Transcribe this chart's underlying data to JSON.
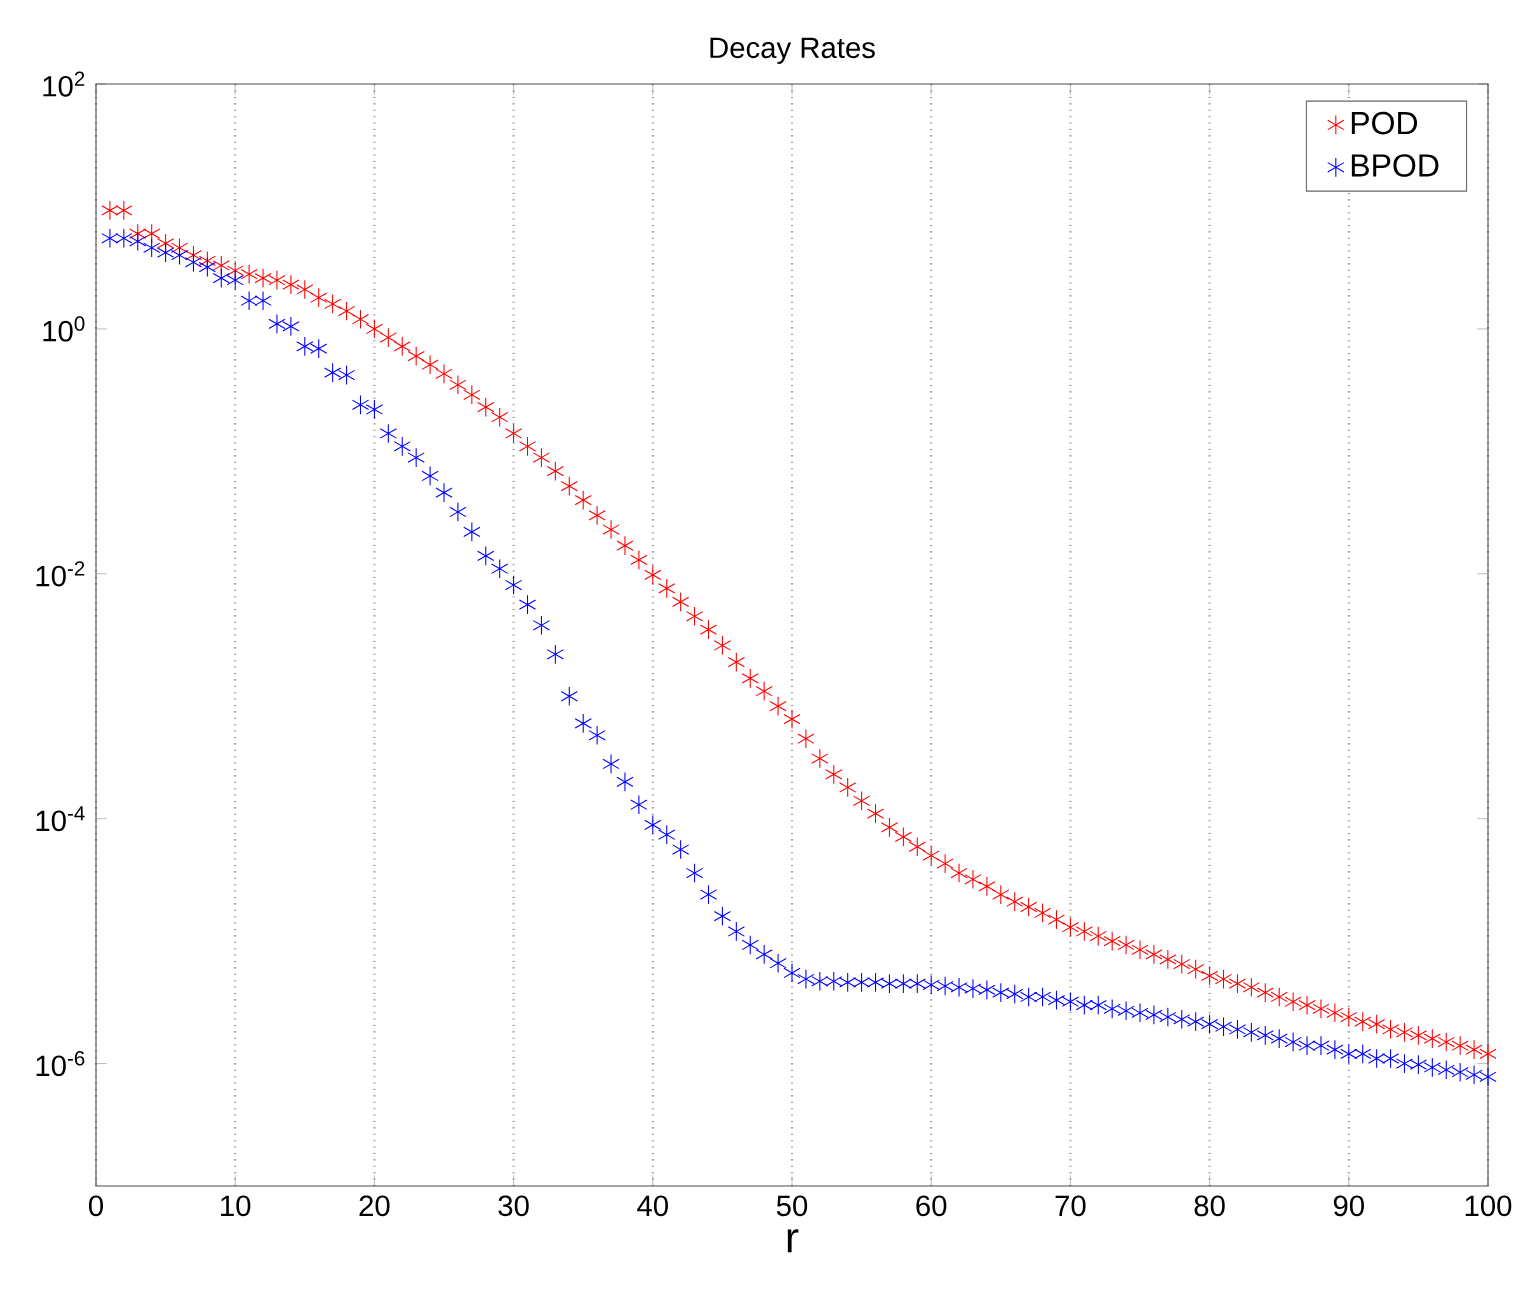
{
  "chart_data": {
    "type": "scatter",
    "title": "Decay Rates",
    "xlabel": "r",
    "x": [
      1,
      2,
      3,
      4,
      5,
      6,
      7,
      8,
      9,
      10,
      11,
      12,
      13,
      14,
      15,
      16,
      17,
      18,
      19,
      20,
      21,
      22,
      23,
      24,
      25,
      26,
      27,
      28,
      29,
      30,
      31,
      32,
      33,
      34,
      35,
      36,
      37,
      38,
      39,
      40,
      41,
      42,
      43,
      44,
      45,
      46,
      47,
      48,
      49,
      50,
      51,
      52,
      53,
      54,
      55,
      56,
      57,
      58,
      59,
      60,
      61,
      62,
      63,
      64,
      65,
      66,
      67,
      68,
      69,
      70,
      71,
      72,
      73,
      74,
      75,
      76,
      77,
      78,
      79,
      80,
      81,
      82,
      83,
      84,
      85,
      86,
      87,
      88,
      89,
      90,
      91,
      92,
      93,
      94,
      95,
      96,
      97,
      98,
      99,
      100
    ],
    "series": [
      {
        "name": "POD",
        "color": "#ff0000",
        "values": [
          9.3,
          9.3,
          6.0,
          6.0,
          5.0,
          4.6,
          4.0,
          3.6,
          3.3,
          3.0,
          2.8,
          2.6,
          2.5,
          2.3,
          2.1,
          1.8,
          1.6,
          1.4,
          1.2,
          1.0,
          0.85,
          0.72,
          0.6,
          0.51,
          0.43,
          0.35,
          0.29,
          0.23,
          0.19,
          0.14,
          0.11,
          0.089,
          0.069,
          0.052,
          0.04,
          0.03,
          0.023,
          0.017,
          0.013,
          0.0098,
          0.0076,
          0.0059,
          0.0045,
          0.0035,
          0.0026,
          0.0019,
          0.0014,
          0.0011,
          0.00083,
          0.00065,
          0.00045,
          0.00031,
          0.00023,
          0.00018,
          0.00014,
          0.00011,
          8.5e-05,
          7.1e-05,
          5.9e-05,
          5e-05,
          4.3e-05,
          3.6e-05,
          3.2e-05,
          2.8e-05,
          2.4e-05,
          2.1e-05,
          1.9e-05,
          1.7e-05,
          1.5e-05,
          1.3e-05,
          1.2e-05,
          1.1e-05,
          1e-05,
          9.3e-06,
          8.5e-06,
          7.8e-06,
          7.1e-06,
          6.5e-06,
          5.9e-06,
          5.2e-06,
          4.9e-06,
          4.5e-06,
          4.2e-06,
          3.8e-06,
          3.5e-06,
          3.2e-06,
          3e-06,
          2.8e-06,
          2.6e-06,
          2.4e-06,
          2.2e-06,
          2.1e-06,
          1.9e-06,
          1.8e-06,
          1.7e-06,
          1.6e-06,
          1.5e-06,
          1.4e-06,
          1.3e-06,
          1.2e-06
        ]
      },
      {
        "name": "BPOD",
        "color": "#0000ff",
        "values": [
          5.5,
          5.5,
          5.2,
          4.6,
          4.2,
          4.0,
          3.5,
          3.2,
          2.6,
          2.5,
          1.7,
          1.7,
          1.1,
          1.05,
          0.72,
          0.69,
          0.44,
          0.42,
          0.24,
          0.22,
          0.14,
          0.11,
          0.089,
          0.063,
          0.046,
          0.032,
          0.022,
          0.014,
          0.011,
          0.0081,
          0.0056,
          0.0038,
          0.0022,
          0.001,
          0.0006,
          0.00048,
          0.00028,
          0.0002,
          0.00013,
          8.9e-05,
          7.4e-05,
          5.6e-05,
          3.6e-05,
          2.4e-05,
          1.6e-05,
          1.2e-05,
          9.3e-06,
          7.8e-06,
          6.6e-06,
          5.5e-06,
          4.9e-06,
          4.7e-06,
          4.7e-06,
          4.6e-06,
          4.6e-06,
          4.6e-06,
          4.5e-06,
          4.5e-06,
          4.5e-06,
          4.4e-06,
          4.3e-06,
          4.2e-06,
          4.1e-06,
          4e-06,
          3.8e-06,
          3.7e-06,
          3.5e-06,
          3.5e-06,
          3.3e-06,
          3.2e-06,
          3e-06,
          3e-06,
          2.8e-06,
          2.7e-06,
          2.6e-06,
          2.5e-06,
          2.4e-06,
          2.3e-06,
          2.2e-06,
          2.1e-06,
          2e-06,
          1.9e-06,
          1.8e-06,
          1.7e-06,
          1.6e-06,
          1.5e-06,
          1.4e-06,
          1.4e-06,
          1.3e-06,
          1.2e-06,
          1.2e-06,
          1.1e-06,
          1.1e-06,
          1e-06,
          9.8e-07,
          9.3e-07,
          8.9e-07,
          8.5e-07,
          8.1e-07,
          7.8e-07
        ]
      }
    ],
    "xlim": [
      0,
      100
    ],
    "xticks": [
      0,
      10,
      20,
      30,
      40,
      50,
      60,
      70,
      80,
      90,
      100
    ],
    "ylim": [
      1e-07,
      100
    ],
    "yticks": [
      {
        "value": 1e-06,
        "label": "10$^{-6}$"
      },
      {
        "value": 0.0001,
        "label": "10$^{-4}$"
      },
      {
        "value": 0.01,
        "label": "10$^{-2}$"
      },
      {
        "value": 1,
        "label": "10$^{0}$"
      },
      {
        "value": 100,
        "label": "10$^{2}$"
      }
    ],
    "log": "y",
    "grid": "x",
    "legend": "top right",
    "marker": "cross"
  }
}
